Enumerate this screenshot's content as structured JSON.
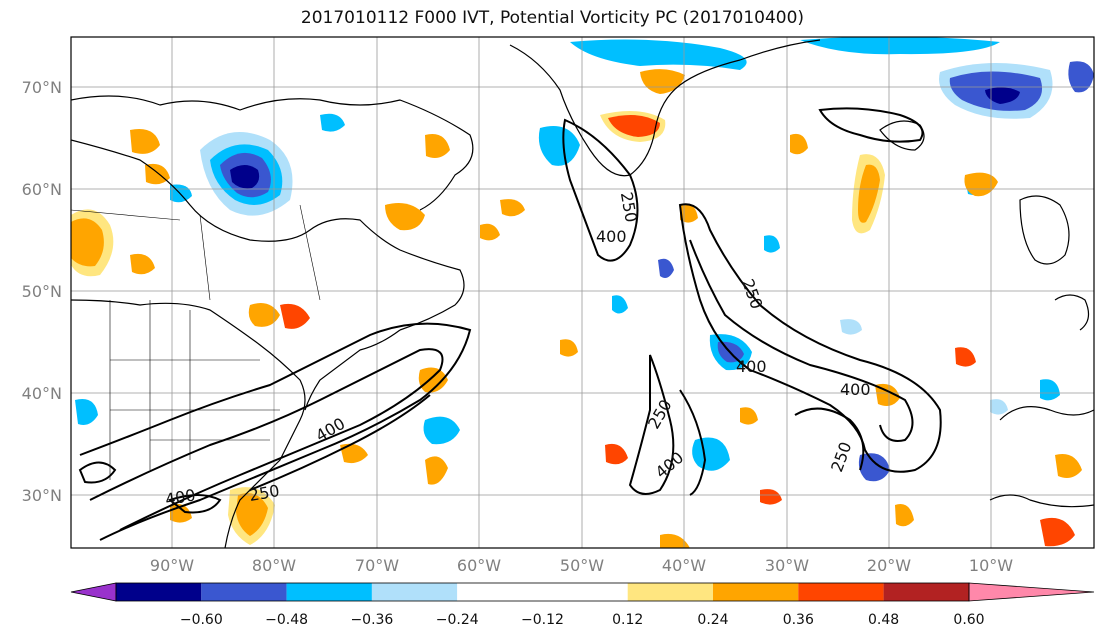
{
  "title": "2017010112 F000 IVT, Potential Vorticity PC (2017010400)",
  "lat_labels": [
    "70°N",
    "60°N",
    "50°N",
    "40°N",
    "30°N"
  ],
  "lon_labels": [
    "90°W",
    "80°W",
    "70°W",
    "60°W",
    "50°W",
    "40°W",
    "30°W",
    "20°W",
    "10°W"
  ],
  "colorbar": {
    "ticks": [
      "−0.60",
      "−0.48",
      "−0.36",
      "−0.24",
      "−0.12",
      "0.12",
      "0.24",
      "0.36",
      "0.48",
      "0.60"
    ],
    "colors": [
      "#9932cc",
      "#00008b",
      "#3a57d0",
      "#00bfff",
      "#b0e0fa",
      "#ffffff",
      "#ffe680",
      "#ffa500",
      "#ff4500",
      "#b22222",
      "#ff88aa"
    ]
  },
  "contour_labels": {
    "a": "400",
    "b": "250",
    "c": "400",
    "d": "250",
    "e": "400",
    "f": "400",
    "g": "250",
    "h": "250",
    "i": "400",
    "j": "250",
    "k": "400"
  }
}
